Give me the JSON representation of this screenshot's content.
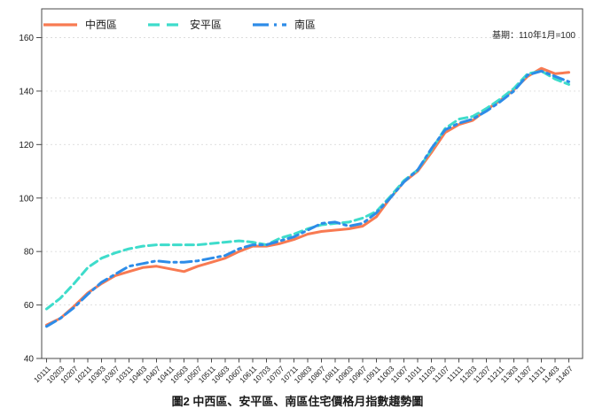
{
  "note": "基期：110年1月=100",
  "caption": "圖2 中西區、安平區、南區住宅價格月指數趨勢圖",
  "colors": {
    "series_zhongxi": "#F87A52",
    "series_anping": "#3EDCCB",
    "series_nan": "#2D8CE8",
    "grid": "#DCDCDC",
    "spine": "#4A4A4A",
    "tick_text": "#1A1A1A"
  },
  "chart_data": {
    "type": "line",
    "title": "圖2 中西區、安平區、南區住宅價格月指數趨勢圖",
    "note": "基期：110年1月=100",
    "categories": [
      "10111",
      "10203",
      "10207",
      "10211",
      "10303",
      "10307",
      "10311",
      "10403",
      "10407",
      "10411",
      "10503",
      "10507",
      "10511",
      "10603",
      "10607",
      "10611",
      "10703",
      "10707",
      "10711",
      "10803",
      "10807",
      "10811",
      "10903",
      "10907",
      "10911",
      "11003",
      "11007",
      "11011",
      "11103",
      "11107",
      "11111",
      "11203",
      "11207",
      "11211",
      "11303",
      "11307",
      "11311",
      "11403",
      "11407"
    ],
    "series": [
      {
        "name": "中西區",
        "color": "#F87A52",
        "dash": "solid",
        "values": [
          52.5,
          55,
          59.5,
          64.5,
          68,
          71,
          72.5,
          74,
          74.5,
          73.5,
          72.5,
          74.5,
          76,
          77.5,
          80,
          82,
          82,
          83,
          84.5,
          86.5,
          87.5,
          88,
          88.5,
          89.5,
          93,
          100,
          106,
          110,
          117,
          124.5,
          127.5,
          129,
          133,
          136.5,
          140.5,
          145.5,
          148.5,
          146.5,
          147
        ]
      },
      {
        "name": "安平區",
        "color": "#3EDCCB",
        "dash": "dashed",
        "values": [
          58.5,
          62.5,
          68,
          74,
          77.5,
          79.5,
          81,
          82,
          82.5,
          82.5,
          82.5,
          82.5,
          83,
          83.5,
          84,
          83.5,
          82.5,
          85,
          86.5,
          88.5,
          90,
          90.5,
          91,
          92.5,
          95,
          100.5,
          106.5,
          110.5,
          118,
          126,
          129.5,
          130.5,
          133.5,
          137,
          141,
          146.5,
          147.5,
          144.5,
          142.5
        ]
      },
      {
        "name": "南區",
        "color": "#2D8CE8",
        "dash": "dashdot",
        "values": [
          52,
          55,
          59,
          64,
          68.5,
          71.5,
          74.5,
          75.5,
          76.5,
          76,
          76,
          76.5,
          77.5,
          78.5,
          81,
          82.5,
          82.5,
          84,
          85.5,
          88,
          90.5,
          91,
          89.5,
          90.5,
          94.5,
          100,
          106,
          110.5,
          118.5,
          125.5,
          128,
          129.5,
          132.5,
          136,
          140,
          146,
          147.5,
          145.5,
          143.5
        ]
      }
    ],
    "ylim": [
      40,
      160
    ],
    "yticks": [
      40,
      60,
      80,
      100,
      120,
      140,
      160
    ],
    "grid": true,
    "grid_style": "dashed",
    "legend_position": "top-left-inside",
    "xlabel": "",
    "ylabel": ""
  }
}
